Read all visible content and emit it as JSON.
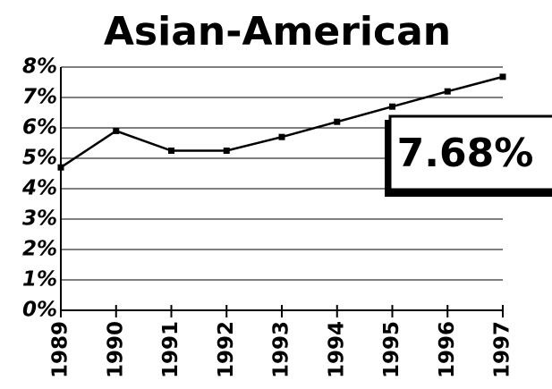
{
  "chart_data": {
    "type": "line",
    "title": "Asian-American",
    "categories": [
      "1989",
      "1990",
      "1991",
      "1992",
      "1993",
      "1994",
      "1995",
      "1996",
      "1997"
    ],
    "values": [
      4.7,
      5.9,
      5.25,
      5.25,
      5.7,
      6.2,
      6.7,
      7.2,
      7.68
    ],
    "color": "#000000",
    "ylim": [
      0,
      8
    ],
    "yticks": [
      {
        "value": 0,
        "label": "0%"
      },
      {
        "value": 1,
        "label": "1%"
      },
      {
        "value": 2,
        "label": "2%"
      },
      {
        "value": 3,
        "label": "3%"
      },
      {
        "value": 4,
        "label": "4%"
      },
      {
        "value": 5,
        "label": "5%"
      },
      {
        "value": 6,
        "label": "6%"
      },
      {
        "value": 7,
        "label": "7%"
      },
      {
        "value": 8,
        "label": "8%"
      }
    ],
    "grid": true,
    "annotation": "7.68%"
  }
}
